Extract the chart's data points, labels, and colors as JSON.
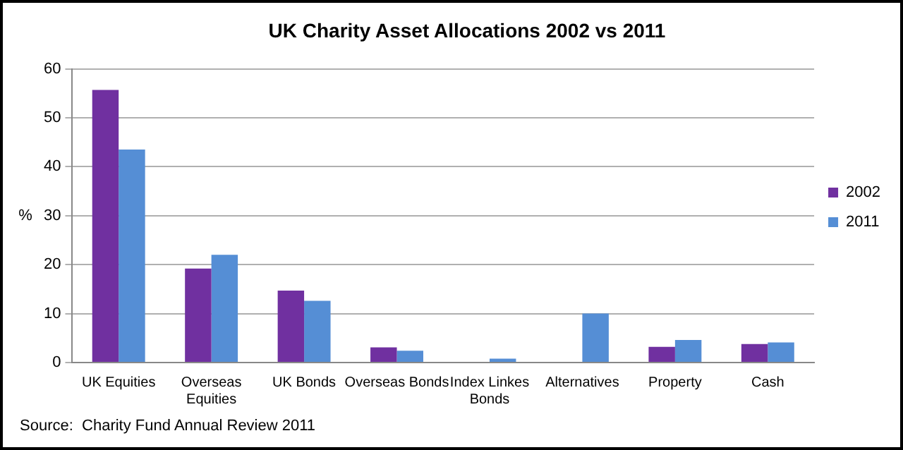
{
  "chart_data": {
    "type": "bar",
    "title": "UK Charity Asset Allocations 2002 vs 2011",
    "ylabel": "%",
    "categories": [
      "UK Equities",
      "Overseas Equities",
      "UK Bonds",
      "Overseas Bonds",
      "Index Linkes Bonds",
      "Alternatives",
      "Property",
      "Cash"
    ],
    "series": [
      {
        "name": "2002",
        "color": "#7030a0",
        "values": [
          55.7,
          19.2,
          14.7,
          3.1,
          0,
          0,
          3.2,
          3.8
        ]
      },
      {
        "name": "2011",
        "color": "#558ed5",
        "values": [
          43.5,
          22,
          12.6,
          2.4,
          0.8,
          10,
          4.6,
          4.1
        ]
      }
    ],
    "ylim": [
      0,
      60
    ],
    "yticks": [
      0,
      10,
      20,
      30,
      40,
      50,
      60
    ],
    "grid": "y",
    "legend": "right",
    "annotations": [
      "Source:  Charity Fund Annual Review 2011"
    ]
  }
}
